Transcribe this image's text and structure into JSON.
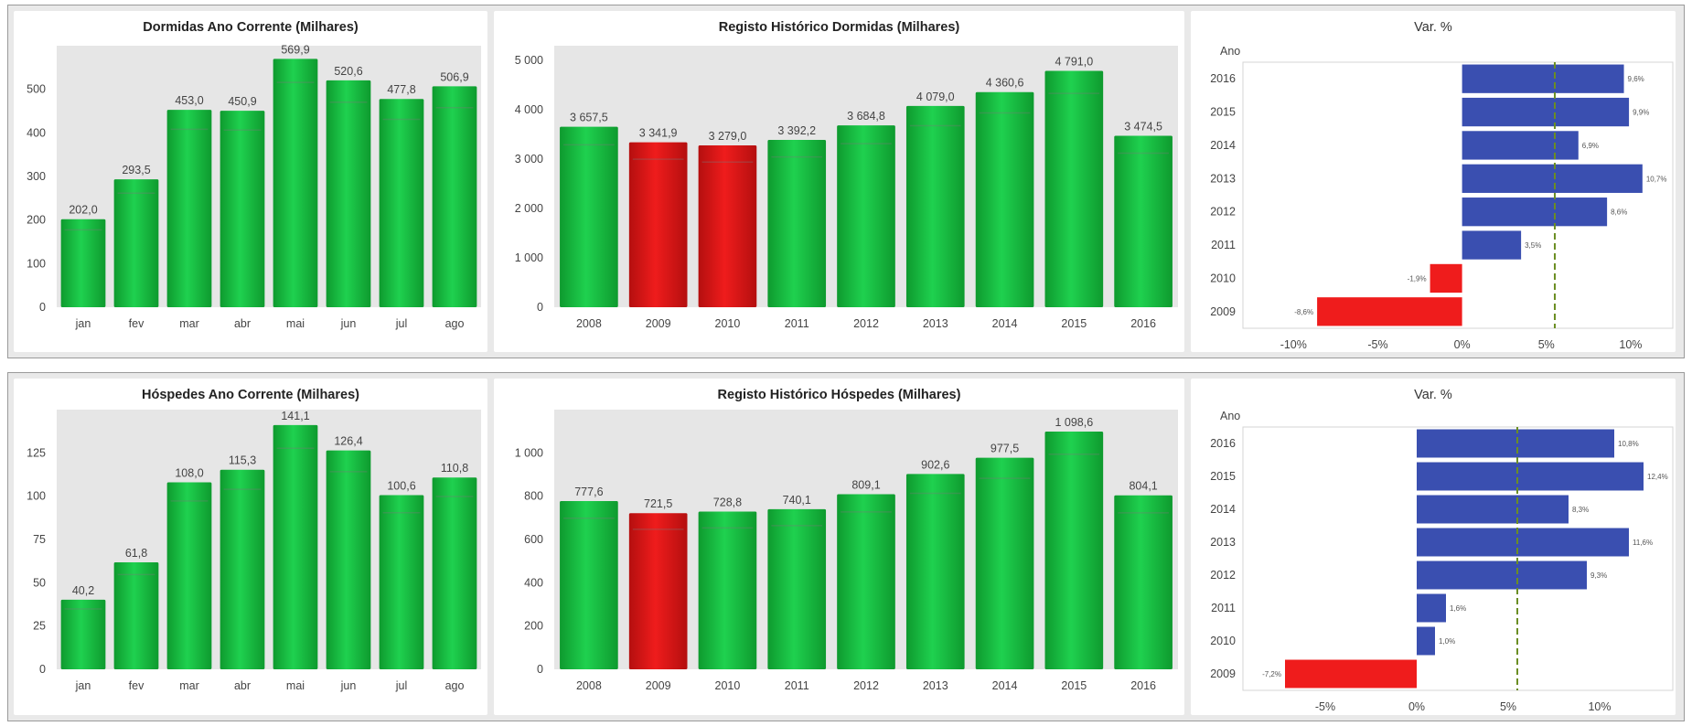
{
  "colors": {
    "green": "#1fd14f",
    "green_dark": "#0e9a2e",
    "red": "#ef1c1c",
    "red_dark": "#b40f0f",
    "blue": "#3a4fb0",
    "reference_line": "#6b8e23",
    "plot_bg": "#e6e6e6"
  },
  "chart_data": [
    {
      "id": "dormidas-ano",
      "type": "bar",
      "title": "Dormidas Ano Corrente (Milhares)",
      "categories": [
        "jan",
        "fev",
        "mar",
        "abr",
        "mai",
        "jun",
        "jul",
        "ago"
      ],
      "values": [
        202.0,
        293.5,
        453.0,
        450.9,
        569.9,
        520.6,
        477.8,
        506.9
      ],
      "value_labels": [
        "202,0",
        "293,5",
        "453,0",
        "450,9",
        "569,9",
        "520,6",
        "477,8",
        "506,9"
      ],
      "bar_colors": [
        "green",
        "green",
        "green",
        "green",
        "green",
        "green",
        "green",
        "green"
      ],
      "yticks": [
        0,
        100,
        200,
        300,
        400,
        500
      ],
      "ytick_labels": [
        "0",
        "100",
        "200",
        "300",
        "400",
        "500"
      ],
      "ylim": [
        0,
        600
      ],
      "grid": false
    },
    {
      "id": "dormidas-historico",
      "type": "bar",
      "title": "Registo Histórico Dormidas (Milhares)",
      "categories": [
        "2008",
        "2009",
        "2010",
        "2011",
        "2012",
        "2013",
        "2014",
        "2015",
        "2016"
      ],
      "values": [
        3657.5,
        3341.9,
        3279.0,
        3392.2,
        3684.8,
        4079.0,
        4360.6,
        4791.0,
        3474.5
      ],
      "value_labels": [
        "3 657,5",
        "3 341,9",
        "3 279,0",
        "3 392,2",
        "3 684,8",
        "4 079,0",
        "4 360,6",
        "4 791,0",
        "3 474,5"
      ],
      "bar_colors": [
        "green",
        "red",
        "red",
        "green",
        "green",
        "green",
        "green",
        "green",
        "green"
      ],
      "yticks": [
        0,
        1000,
        2000,
        3000,
        4000,
        5000
      ],
      "ytick_labels": [
        "0",
        "1 000",
        "2 000",
        "3 000",
        "4 000",
        "5 000"
      ],
      "ylim": [
        0,
        5300
      ],
      "grid": false
    },
    {
      "id": "dormidas-var",
      "type": "bar",
      "orientation": "horizontal",
      "title": "Var. %",
      "ylabel": "Ano",
      "categories": [
        "2016",
        "2015",
        "2014",
        "2013",
        "2012",
        "2011",
        "2010",
        "2009"
      ],
      "values": [
        9.6,
        9.9,
        6.9,
        10.7,
        8.6,
        3.5,
        -1.9,
        -8.6
      ],
      "value_labels": [
        "9,6%",
        "9,9%",
        "6,9%",
        "10,7%",
        "8,6%",
        "3,5%",
        "-1,9%",
        "-8,6%"
      ],
      "xticks": [
        -10,
        -5,
        0,
        5,
        10
      ],
      "xtick_labels": [
        "-10%",
        "-5%",
        "0%",
        "5%",
        "10%"
      ],
      "xlim": [
        -13,
        12.5
      ],
      "reference_line": 5.5,
      "grid": false
    },
    {
      "id": "hospedes-ano",
      "type": "bar",
      "title": "Hóspedes Ano Corrente (Milhares)",
      "categories": [
        "jan",
        "fev",
        "mar",
        "abr",
        "mai",
        "jun",
        "jul",
        "ago"
      ],
      "values": [
        40.2,
        61.8,
        108.0,
        115.3,
        141.1,
        126.4,
        100.6,
        110.8
      ],
      "value_labels": [
        "40,2",
        "61,8",
        "108,0",
        "115,3",
        "141,1",
        "126,4",
        "100,6",
        "110,8"
      ],
      "bar_colors": [
        "green",
        "green",
        "green",
        "green",
        "green",
        "green",
        "green",
        "green"
      ],
      "yticks": [
        0,
        25,
        50,
        75,
        100,
        125
      ],
      "ytick_labels": [
        "0",
        "25",
        "50",
        "75",
        "100",
        "125"
      ],
      "ylim": [
        0,
        150
      ],
      "grid": false
    },
    {
      "id": "hospedes-historico",
      "type": "bar",
      "title": "Registo Histórico Hóspedes (Milhares)",
      "categories": [
        "2008",
        "2009",
        "2010",
        "2011",
        "2012",
        "2013",
        "2014",
        "2015",
        "2016"
      ],
      "values": [
        777.6,
        721.5,
        728.8,
        740.1,
        809.1,
        902.6,
        977.5,
        1098.6,
        804.1
      ],
      "value_labels": [
        "777,6",
        "721,5",
        "728,8",
        "740,1",
        "809,1",
        "902,6",
        "977,5",
        "1 098,6",
        "804,1"
      ],
      "bar_colors": [
        "green",
        "red",
        "green",
        "green",
        "green",
        "green",
        "green",
        "green",
        "green"
      ],
      "yticks": [
        0,
        200,
        400,
        600,
        800,
        1000
      ],
      "ytick_labels": [
        "0",
        "200",
        "400",
        "600",
        "800",
        "1 000"
      ],
      "ylim": [
        0,
        1200
      ],
      "grid": false
    },
    {
      "id": "hospedes-var",
      "type": "bar",
      "orientation": "horizontal",
      "title": "Var. %",
      "ylabel": "Ano",
      "categories": [
        "2016",
        "2015",
        "2014",
        "2013",
        "2012",
        "2011",
        "2010",
        "2009"
      ],
      "values": [
        10.8,
        12.4,
        8.3,
        11.6,
        9.3,
        1.6,
        1.0,
        -7.2
      ],
      "value_labels": [
        "10,8%",
        "12,4%",
        "8,3%",
        "11,6%",
        "9,3%",
        "1,6%",
        "1,0%",
        "-7,2%"
      ],
      "xticks": [
        -5,
        0,
        5,
        10
      ],
      "xtick_labels": [
        "-5%",
        "0%",
        "5%",
        "10%"
      ],
      "xlim": [
        -9.5,
        14
      ],
      "reference_line": 5.5,
      "grid": false
    }
  ]
}
